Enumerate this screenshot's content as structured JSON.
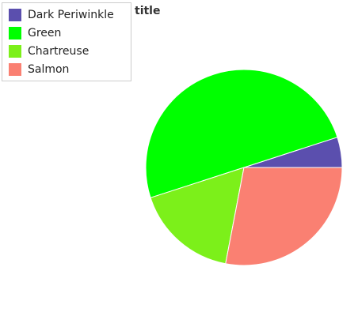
{
  "chart_data": {
    "type": "pie",
    "title": "title",
    "legend_position": "top-left",
    "start_angle_deg": 0,
    "direction": "counterclockwise",
    "slices": [
      {
        "label": "Dark Periwinkle",
        "value": 5,
        "color": "#5b4fae"
      },
      {
        "label": "Green",
        "value": 50,
        "color": "#00ff00"
      },
      {
        "label": "Chartreuse",
        "value": 17,
        "color": "#7cf01a"
      },
      {
        "label": "Salmon",
        "value": 28,
        "color": "#fa8072"
      }
    ]
  }
}
